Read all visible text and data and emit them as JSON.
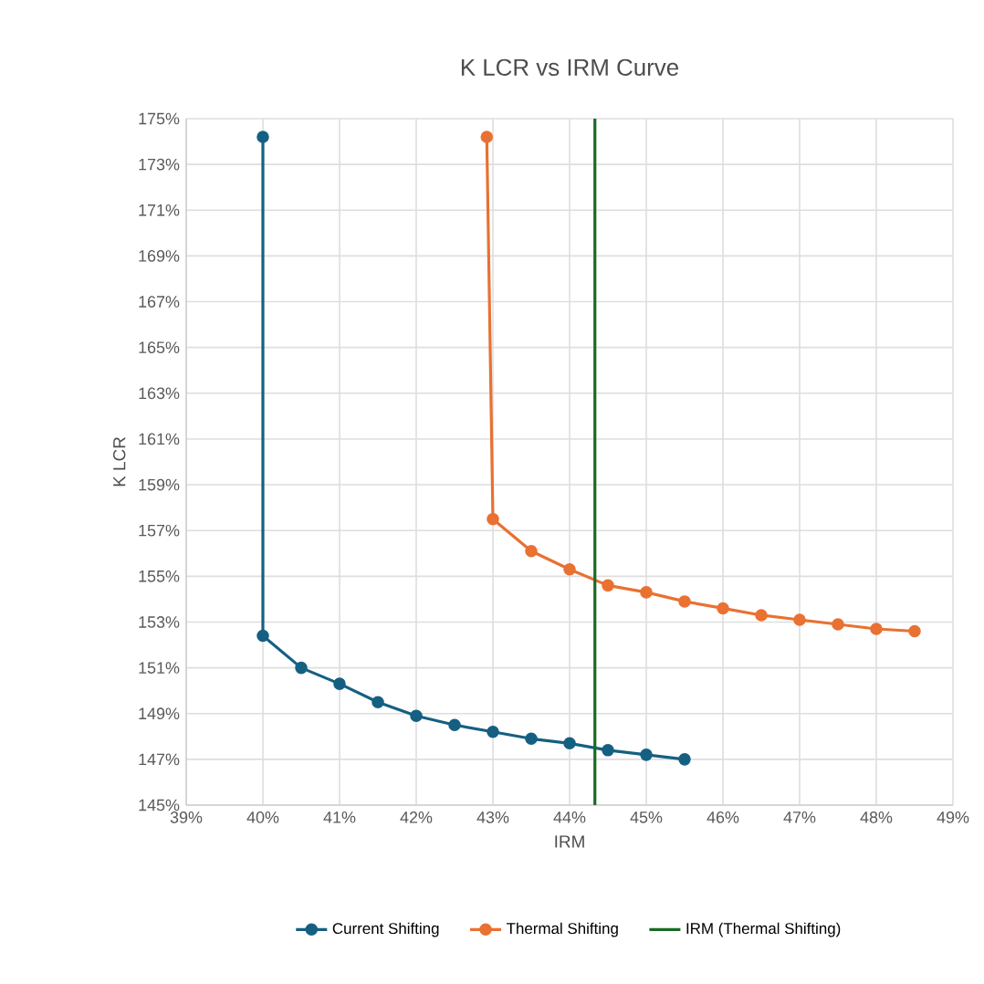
{
  "chart_data": {
    "type": "line",
    "title": "K LCR vs IRM Curve",
    "xlabel": "IRM",
    "ylabel": "K LCR",
    "xlim": [
      39,
      49
    ],
    "xticks": [
      {
        "value": 39,
        "label": "39%"
      },
      {
        "value": 40,
        "label": "40%"
      },
      {
        "value": 41,
        "label": "41%"
      },
      {
        "value": 42,
        "label": "42%"
      },
      {
        "value": 43,
        "label": "43%"
      },
      {
        "value": 44,
        "label": "44%"
      },
      {
        "value": 45,
        "label": "45%"
      },
      {
        "value": 46,
        "label": "46%"
      },
      {
        "value": 47,
        "label": "47%"
      },
      {
        "value": 48,
        "label": "48%"
      },
      {
        "value": 49,
        "label": "49%"
      }
    ],
    "ylim": [
      145,
      175
    ],
    "yticks": [
      {
        "value": 145,
        "label": "145%"
      },
      {
        "value": 147,
        "label": "147%"
      },
      {
        "value": 149,
        "label": "149%"
      },
      {
        "value": 151,
        "label": "151%"
      },
      {
        "value": 153,
        "label": "153%"
      },
      {
        "value": 155,
        "label": "155%"
      },
      {
        "value": 157,
        "label": "157%"
      },
      {
        "value": 159,
        "label": "159%"
      },
      {
        "value": 161,
        "label": "161%"
      },
      {
        "value": 163,
        "label": "163%"
      },
      {
        "value": 165,
        "label": "165%"
      },
      {
        "value": 167,
        "label": "167%"
      },
      {
        "value": 169,
        "label": "169%"
      },
      {
        "value": 171,
        "label": "171%"
      },
      {
        "value": 173,
        "label": "173%"
      },
      {
        "value": 175,
        "label": "175%"
      }
    ],
    "grid": true,
    "legend": "bottom",
    "marker": "circle",
    "series": [
      {
        "name": "Current Shifting",
        "color": "#156082",
        "x": [
          40,
          40,
          40.5,
          41,
          41.5,
          42,
          42.5,
          43,
          43.5,
          44,
          44.5,
          45,
          45.5
        ],
        "values": [
          174.2,
          152.4,
          151.0,
          150.3,
          149.5,
          148.9,
          148.5,
          148.2,
          147.9,
          147.7,
          147.4,
          147.2,
          147.0
        ]
      },
      {
        "name": "Thermal Shifting",
        "color": "#e97132",
        "x": [
          42.92,
          43,
          43.5,
          44,
          44.5,
          45,
          45.5,
          46,
          46.5,
          47,
          47.5,
          48,
          48.5
        ],
        "values": [
          174.2,
          157.5,
          156.1,
          155.3,
          154.6,
          154.3,
          153.9,
          153.6,
          153.3,
          153.1,
          152.9,
          152.7,
          152.6
        ]
      },
      {
        "name": "IRM (Thermal Shifting)",
        "color": "#196b24",
        "marker": "none",
        "x": [
          44.33,
          44.33
        ],
        "values": [
          145,
          175
        ]
      }
    ]
  }
}
